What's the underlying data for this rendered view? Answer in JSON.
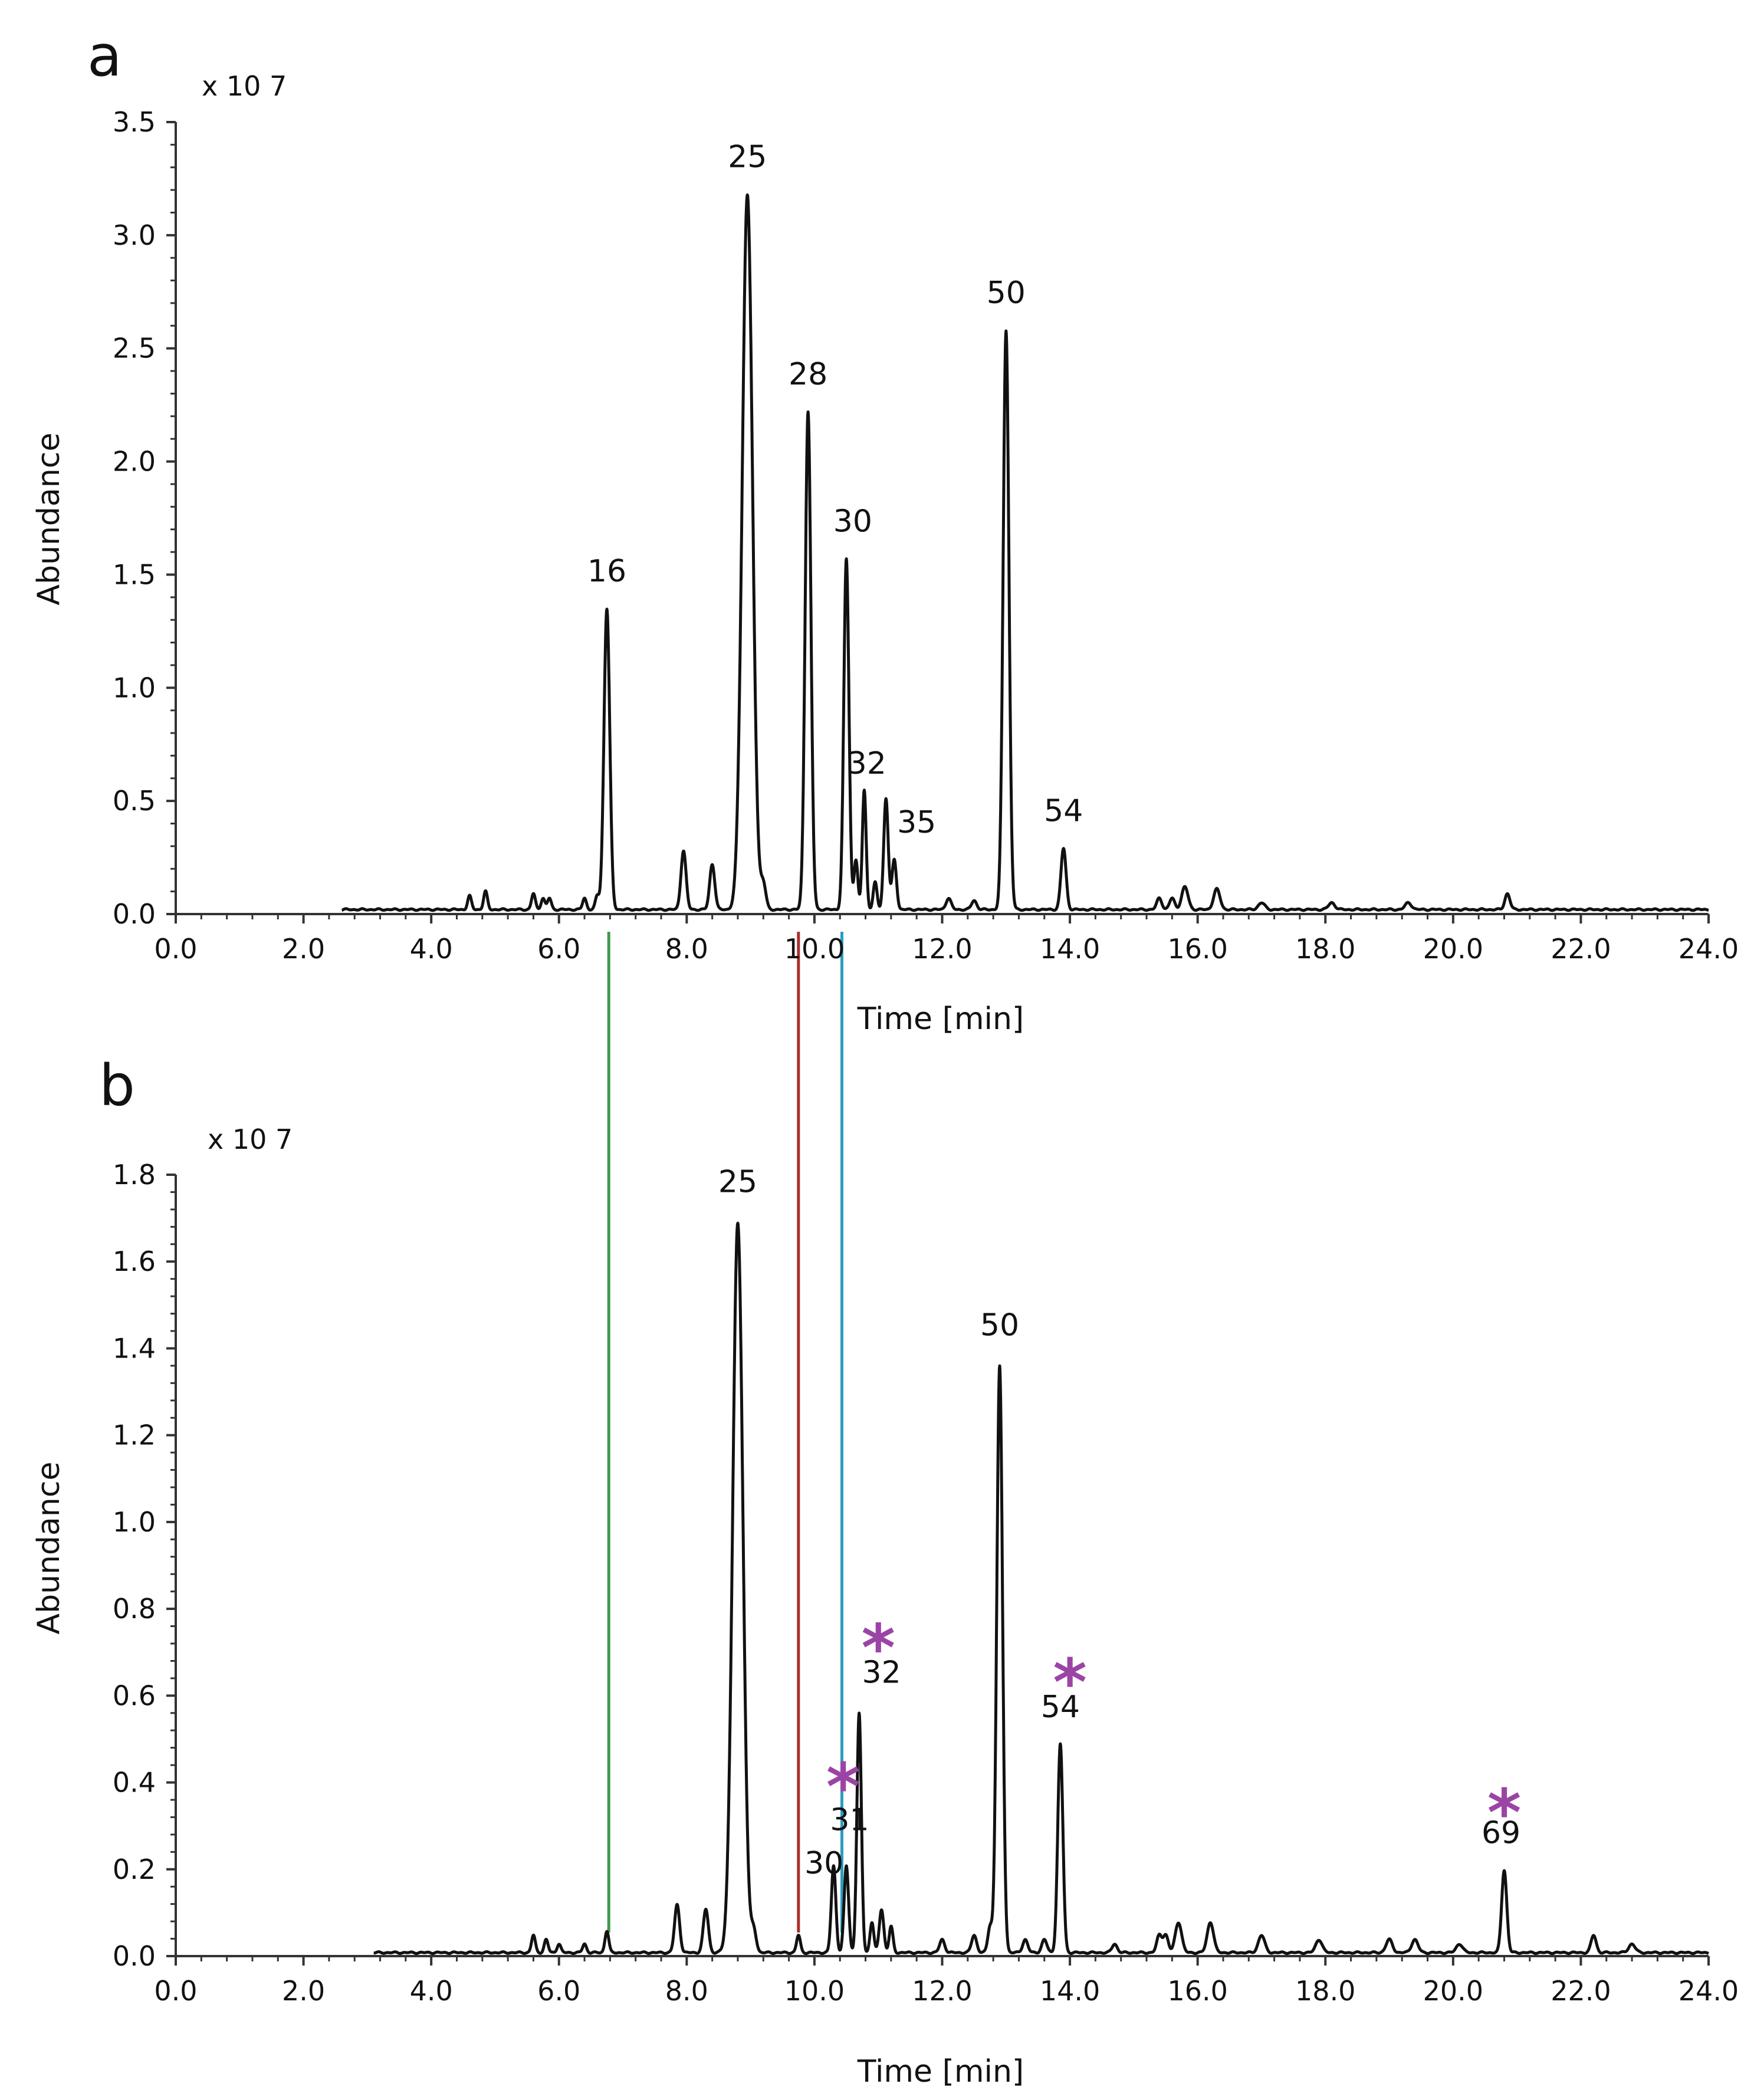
{
  "chart_data": [
    {
      "panel": "a",
      "type": "line",
      "multiplier": "x 10 7",
      "ylabel": "Abundance",
      "xlabel": "Time [min]",
      "xlim": [
        0,
        24
      ],
      "ylim": [
        0,
        3.5
      ],
      "x_ticks": [
        "0.0",
        "2.0",
        "4.0",
        "6.0",
        "8.0",
        "10.0",
        "12.0",
        "14.0",
        "16.0",
        "18.0",
        "20.0",
        "22.0",
        "24.0"
      ],
      "y_ticks": [
        "0.0",
        "0.5",
        "1.0",
        "1.5",
        "2.0",
        "2.5",
        "3.0",
        "3.5"
      ],
      "trace_start": 2.6,
      "baseline": 0.02,
      "peaks": [
        {
          "t": 4.6,
          "h": 0.06,
          "w": 0.03
        },
        {
          "t": 4.85,
          "h": 0.08,
          "w": 0.03
        },
        {
          "t": 5.6,
          "h": 0.07,
          "w": 0.03
        },
        {
          "t": 5.75,
          "h": 0.05,
          "w": 0.03
        },
        {
          "t": 5.85,
          "h": 0.05,
          "w": 0.03
        },
        {
          "t": 6.4,
          "h": 0.05,
          "w": 0.03
        },
        {
          "t": 6.6,
          "h": 0.06,
          "w": 0.03
        },
        {
          "t": 6.75,
          "h": 1.33,
          "w": 0.045
        },
        {
          "t": 7.95,
          "h": 0.26,
          "w": 0.04
        },
        {
          "t": 8.4,
          "h": 0.2,
          "w": 0.04
        },
        {
          "t": 8.95,
          "h": 3.16,
          "w": 0.08
        },
        {
          "t": 9.2,
          "h": 0.11,
          "w": 0.04
        },
        {
          "t": 9.9,
          "h": 2.2,
          "w": 0.045
        },
        {
          "t": 10.5,
          "h": 1.55,
          "w": 0.04
        },
        {
          "t": 10.65,
          "h": 0.22,
          "w": 0.03
        },
        {
          "t": 10.78,
          "h": 0.53,
          "w": 0.03
        },
        {
          "t": 10.95,
          "h": 0.12,
          "w": 0.03
        },
        {
          "t": 11.12,
          "h": 0.49,
          "w": 0.035
        },
        {
          "t": 11.25,
          "h": 0.22,
          "w": 0.035
        },
        {
          "t": 12.1,
          "h": 0.05,
          "w": 0.04
        },
        {
          "t": 12.5,
          "h": 0.04,
          "w": 0.04
        },
        {
          "t": 13.0,
          "h": 2.56,
          "w": 0.045
        },
        {
          "t": 13.9,
          "h": 0.27,
          "w": 0.04
        },
        {
          "t": 15.4,
          "h": 0.05,
          "w": 0.04
        },
        {
          "t": 15.6,
          "h": 0.05,
          "w": 0.04
        },
        {
          "t": 15.8,
          "h": 0.1,
          "w": 0.05
        },
        {
          "t": 16.3,
          "h": 0.09,
          "w": 0.05
        },
        {
          "t": 17.0,
          "h": 0.03,
          "w": 0.05
        },
        {
          "t": 18.1,
          "h": 0.03,
          "w": 0.05
        },
        {
          "t": 19.3,
          "h": 0.03,
          "w": 0.05
        },
        {
          "t": 20.85,
          "h": 0.07,
          "w": 0.04
        }
      ],
      "labels": [
        {
          "text": "16",
          "t": 6.75,
          "y": 1.47
        },
        {
          "text": "25",
          "t": 8.95,
          "y": 3.3
        },
        {
          "text": "28",
          "t": 9.9,
          "y": 2.34
        },
        {
          "text": "30",
          "t": 10.6,
          "y": 1.69
        },
        {
          "text": "32",
          "t": 10.82,
          "y": 0.62
        },
        {
          "text": "35",
          "t": 11.6,
          "y": 0.36
        },
        {
          "text": "54",
          "t": 13.9,
          "y": 0.41
        },
        {
          "text": "50",
          "t": 13.0,
          "y": 2.7
        }
      ],
      "asterisks": []
    },
    {
      "panel": "b",
      "type": "line",
      "multiplier": "x 10 7",
      "ylabel": "Abundance",
      "xlabel": "Time [min]",
      "xlim": [
        0,
        24
      ],
      "ylim": [
        0,
        1.8
      ],
      "x_ticks": [
        "0.0",
        "2.0",
        "4.0",
        "6.0",
        "8.0",
        "10.0",
        "12.0",
        "14.0",
        "16.0",
        "18.0",
        "20.0",
        "22.0",
        "24.0"
      ],
      "y_ticks": [
        "0.0",
        "0.2",
        "0.4",
        "0.6",
        "0.8",
        "1.0",
        "1.2",
        "1.4",
        "1.6",
        "1.8"
      ],
      "trace_start": 3.1,
      "baseline": 0.008,
      "peaks": [
        {
          "t": 5.6,
          "h": 0.04,
          "w": 0.03
        },
        {
          "t": 5.8,
          "h": 0.03,
          "w": 0.03
        },
        {
          "t": 6.0,
          "h": 0.02,
          "w": 0.03
        },
        {
          "t": 6.4,
          "h": 0.02,
          "w": 0.03
        },
        {
          "t": 6.75,
          "h": 0.05,
          "w": 0.03
        },
        {
          "t": 7.85,
          "h": 0.11,
          "w": 0.04
        },
        {
          "t": 8.3,
          "h": 0.1,
          "w": 0.04
        },
        {
          "t": 8.8,
          "h": 1.68,
          "w": 0.08
        },
        {
          "t": 9.05,
          "h": 0.05,
          "w": 0.04
        },
        {
          "t": 9.75,
          "h": 0.04,
          "w": 0.03
        },
        {
          "t": 10.3,
          "h": 0.2,
          "w": 0.035
        },
        {
          "t": 10.5,
          "h": 0.2,
          "w": 0.035
        },
        {
          "t": 10.7,
          "h": 0.55,
          "w": 0.035
        },
        {
          "t": 10.9,
          "h": 0.07,
          "w": 0.03
        },
        {
          "t": 11.05,
          "h": 0.1,
          "w": 0.035
        },
        {
          "t": 11.2,
          "h": 0.06,
          "w": 0.03
        },
        {
          "t": 12.0,
          "h": 0.03,
          "w": 0.04
        },
        {
          "t": 12.5,
          "h": 0.04,
          "w": 0.04
        },
        {
          "t": 12.75,
          "h": 0.06,
          "w": 0.035
        },
        {
          "t": 12.9,
          "h": 1.35,
          "w": 0.045
        },
        {
          "t": 13.3,
          "h": 0.03,
          "w": 0.04
        },
        {
          "t": 13.6,
          "h": 0.03,
          "w": 0.04
        },
        {
          "t": 13.85,
          "h": 0.48,
          "w": 0.04
        },
        {
          "t": 14.7,
          "h": 0.02,
          "w": 0.04
        },
        {
          "t": 15.4,
          "h": 0.04,
          "w": 0.04
        },
        {
          "t": 15.5,
          "h": 0.04,
          "w": 0.04
        },
        {
          "t": 15.7,
          "h": 0.07,
          "w": 0.05
        },
        {
          "t": 16.2,
          "h": 0.07,
          "w": 0.05
        },
        {
          "t": 17.0,
          "h": 0.04,
          "w": 0.05
        },
        {
          "t": 17.9,
          "h": 0.03,
          "w": 0.05
        },
        {
          "t": 19.0,
          "h": 0.03,
          "w": 0.05
        },
        {
          "t": 19.4,
          "h": 0.03,
          "w": 0.05
        },
        {
          "t": 20.1,
          "h": 0.02,
          "w": 0.05
        },
        {
          "t": 20.8,
          "h": 0.19,
          "w": 0.04
        },
        {
          "t": 22.2,
          "h": 0.04,
          "w": 0.04
        },
        {
          "t": 22.8,
          "h": 0.02,
          "w": 0.05
        }
      ],
      "labels": [
        {
          "text": "25",
          "t": 8.8,
          "y": 1.76
        },
        {
          "text": "50",
          "t": 12.9,
          "y": 1.43
        },
        {
          "text": "32",
          "t": 11.05,
          "y": 0.63
        },
        {
          "text": "54",
          "t": 13.85,
          "y": 0.55
        },
        {
          "text": "31",
          "t": 10.55,
          "y": 0.29
        },
        {
          "text": "30",
          "t": 10.15,
          "y": 0.19
        },
        {
          "text": "69",
          "t": 20.75,
          "y": 0.26
        }
      ],
      "asterisks": [
        {
          "text": "*",
          "t": 11.0,
          "y": 0.74
        },
        {
          "text": "*",
          "t": 14.0,
          "y": 0.66
        },
        {
          "text": "*",
          "t": 10.45,
          "y": 0.42
        },
        {
          "text": "*",
          "t": 20.8,
          "y": 0.36
        }
      ]
    }
  ],
  "reference_lines": [
    {
      "name": "green",
      "t": 6.78,
      "color": "#3f9a4a"
    },
    {
      "name": "red",
      "t": 9.75,
      "color": "#a8302e"
    },
    {
      "name": "cyan",
      "t": 10.43,
      "color": "#2a9cc0"
    }
  ],
  "colors": {
    "trace": "#111111",
    "axis": "#333333",
    "asterisk": "#9b44a6"
  }
}
